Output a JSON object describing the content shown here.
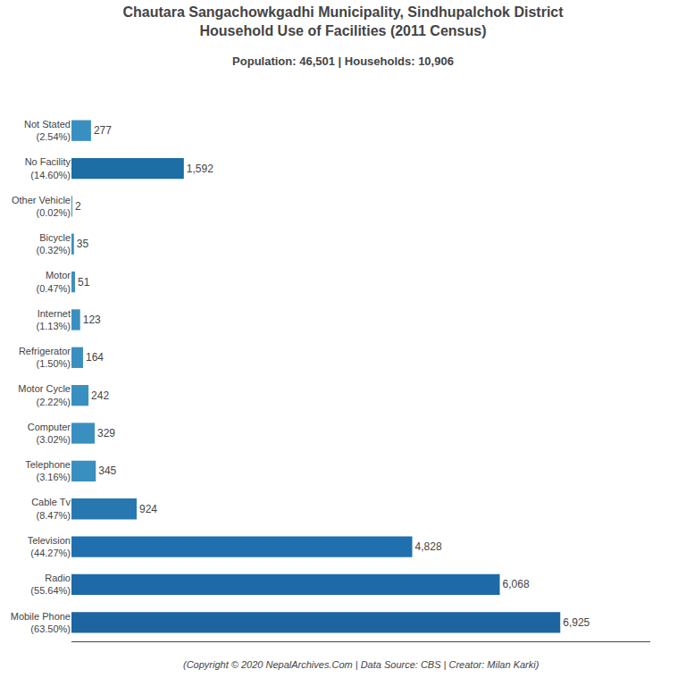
{
  "chart_data": {
    "type": "bar",
    "orientation": "horizontal",
    "title": "Chautara Sangachowkgadhi Municipality, Sindhupalchok District\nHousehold Use of Facilities (2011 Census)",
    "subtitle": "Population: 46,501 | Households: 10,906",
    "annotations": [
      "(Copyright © 2020 NepalArchives.Com | Data Source: CBS | Creator: Milan Karki)"
    ],
    "categories": [
      "Not Stated\n(2.54%)",
      "No Facility\n(14.60%)",
      "Other Vehicle\n(0.02%)",
      "Bicycle\n(0.32%)",
      "Motor\n(0.47%)",
      "Internet\n(1.13%)",
      "Refrigerator\n(1.50%)",
      "Motor Cycle\n(2.22%)",
      "Computer\n(3.02%)",
      "Telephone\n(3.16%)",
      "Cable Tv\n(8.47%)",
      "Television\n(44.27%)",
      "Radio\n(55.64%)",
      "Mobile Phone\n(63.50%)"
    ],
    "values": [
      277,
      1592,
      2,
      35,
      51,
      123,
      164,
      242,
      329,
      345,
      924,
      4828,
      6068,
      6925
    ],
    "value_labels": [
      "277",
      "1,592",
      "2",
      "35",
      "51",
      "123",
      "164",
      "242",
      "329",
      "345",
      "924",
      "4,828",
      "6,068",
      "6,925"
    ],
    "colors": [
      "#3a8fc1",
      "#1c6ea4",
      "#3a8fc1",
      "#3a8fc1",
      "#3a8fc1",
      "#3a8fc1",
      "#3a8fc1",
      "#3a8fc1",
      "#3a8fc1",
      "#3a8fc1",
      "#2878b0",
      "#2070b0",
      "#1e6aa8",
      "#1c65a0"
    ],
    "xlim": [
      0,
      8200
    ],
    "data_labels": true,
    "tick_labels": "y",
    "grid": false
  }
}
